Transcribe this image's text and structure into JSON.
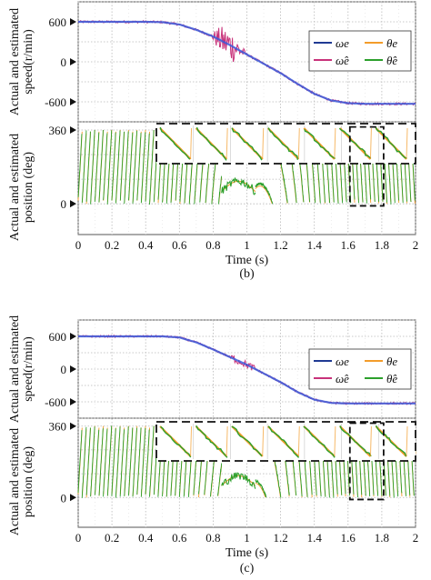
{
  "chart_data": [
    {
      "type": "line",
      "caption": "(b)",
      "xlabel": "Time (s)",
      "xlim": [
        0,
        2
      ],
      "xticks": [
        "0",
        "0.2",
        "0.4",
        "0.6",
        "0.8",
        "1",
        "1.2",
        "1.4",
        "1.6",
        "1.8",
        "2"
      ],
      "speed": {
        "ylabel": [
          "Actual and estimated",
          "speed(r/min)"
        ],
        "ylim": [
          -900,
          900
        ],
        "yticks": [
          {
            "v": 600,
            "label": "600"
          },
          {
            "v": 0,
            "label": "0"
          },
          {
            "v": -600,
            "label": "-600"
          }
        ],
        "legend": [
          "ωe",
          "ω̂e",
          "θe",
          "θ̂e"
        ],
        "series": [
          {
            "name": "ωe",
            "x": [
              0,
              0.4,
              0.5,
              0.6,
              0.7,
              0.8,
              0.9,
              1.0,
              1.1,
              1.2,
              1.3,
              1.4,
              1.5,
              1.6,
              1.7,
              1.8,
              2.0
            ],
            "values": [
              600,
              600,
              595,
              560,
              480,
              380,
              250,
              110,
              -30,
              -170,
              -330,
              -480,
              -580,
              -620,
              -630,
              -630,
              -630
            ]
          },
          {
            "name": "ω̂e",
            "x": [
              0,
              0.4,
              0.5,
              0.6,
              0.7,
              0.8,
              0.9,
              1.0,
              1.1,
              1.2,
              1.3,
              1.4,
              1.5,
              1.6,
              1.7,
              1.8,
              2.0
            ],
            "values": [
              600,
              600,
              595,
              560,
              480,
              380,
              250,
              110,
              -30,
              -170,
              -330,
              -480,
              -580,
              -620,
              -630,
              -630,
              -630
            ]
          }
        ]
      },
      "position": {
        "ylabel": [
          "Actual and estimated",
          "position (deg)"
        ],
        "ylim": [
          -150,
          400
        ],
        "yticks": [
          {
            "v": 360,
            "label": "360"
          },
          {
            "v": 0,
            "label": "0"
          }
        ],
        "zoom_range": [
          1.6,
          1.8
        ]
      }
    },
    {
      "type": "line",
      "caption": "(c)",
      "xlabel": "Time (s)",
      "xlim": [
        0,
        2
      ],
      "xticks": [
        "0",
        "0.2",
        "0.4",
        "0.6",
        "0.8",
        "1",
        "1.2",
        "1.4",
        "1.6",
        "1.8",
        "2"
      ],
      "speed": {
        "ylabel": [
          "Actual and estimated",
          "speed(r/min)"
        ],
        "ylim": [
          -900,
          900
        ],
        "yticks": [
          {
            "v": 600,
            "label": "600"
          },
          {
            "v": 0,
            "label": "0"
          },
          {
            "v": -600,
            "label": "-600"
          }
        ],
        "legend": [
          "ωe",
          "ω̂e",
          "θe",
          "θ̂e"
        ],
        "series": [
          {
            "name": "ωe",
            "x": [
              0,
              0.4,
              0.5,
              0.6,
              0.7,
              0.8,
              0.9,
              1.0,
              1.1,
              1.2,
              1.3,
              1.4,
              1.5,
              1.6,
              1.8,
              2.0
            ],
            "values": [
              600,
              600,
              600,
              580,
              490,
              360,
              220,
              80,
              -80,
              -240,
              -420,
              -560,
              -620,
              -630,
              -630,
              -630
            ]
          },
          {
            "name": "ω̂e",
            "x": [
              0,
              0.4,
              0.5,
              0.6,
              0.7,
              0.8,
              0.9,
              1.0,
              1.1,
              1.2,
              1.3,
              1.4,
              1.5,
              1.6,
              1.8,
              2.0
            ],
            "values": [
              600,
              600,
              600,
              580,
              490,
              360,
              220,
              80,
              -80,
              -240,
              -420,
              -560,
              -620,
              -630,
              -630,
              -630
            ]
          }
        ]
      },
      "position": {
        "ylabel": [
          "Actual and estimated",
          "position (deg)"
        ],
        "ylim": [
          -150,
          400
        ],
        "yticks": [
          {
            "v": 360,
            "label": "360"
          },
          {
            "v": 0,
            "label": "0"
          }
        ],
        "zoom_range": [
          1.6,
          1.8
        ]
      }
    }
  ],
  "colors": {
    "omega": "#1f3a93",
    "omega_hat": "#c8327a",
    "theta": "#f39c2a",
    "theta_hat": "#2ca02c",
    "grid": "#b8b8b8"
  }
}
